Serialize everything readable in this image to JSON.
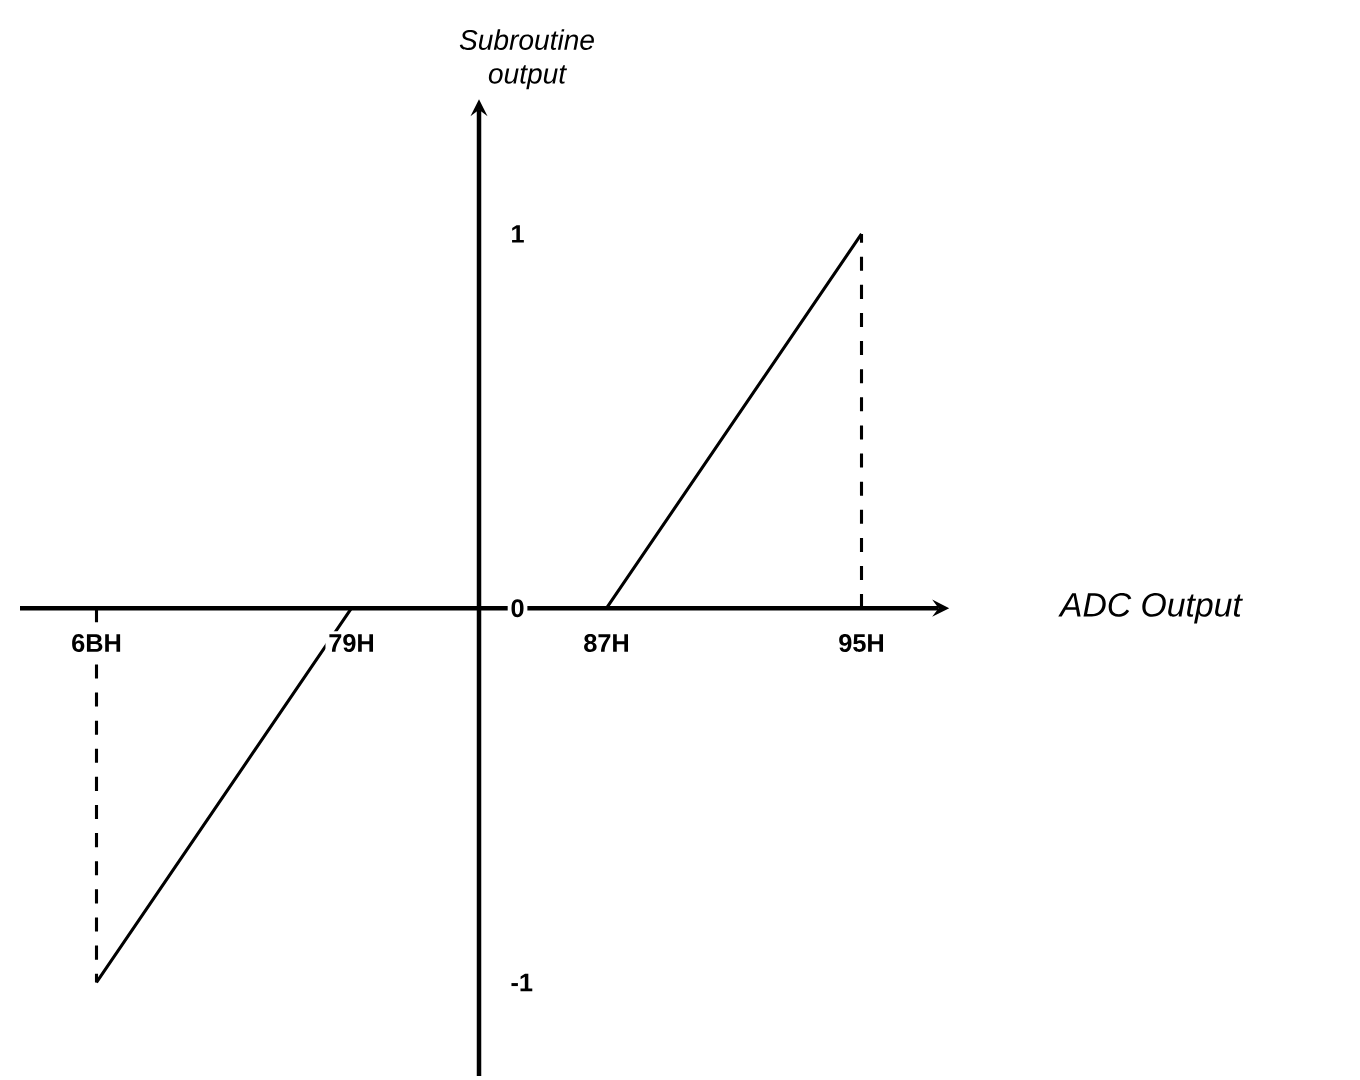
{
  "chart_data": {
    "type": "line",
    "xlabel": "ADC Output",
    "ylabel": "Subroutine output",
    "categories": [
      "6BH",
      "79H",
      "87H",
      "95H"
    ],
    "ylim": [
      -1.25,
      1.33
    ],
    "yticks": [
      -1,
      0,
      1
    ],
    "grid": false,
    "series": [
      {
        "color": "#000000",
        "line_style": "solid",
        "values": [
          -1,
          0,
          0,
          1
        ]
      },
      {
        "color": "#000000",
        "line_style": "dashed",
        "x": [
          "6BH",
          "6BH"
        ],
        "values": [
          0,
          -1
        ]
      },
      {
        "color": "#000000",
        "line_style": "dashed",
        "x": [
          "95H",
          "95H"
        ],
        "values": [
          0,
          1
        ]
      }
    ]
  }
}
